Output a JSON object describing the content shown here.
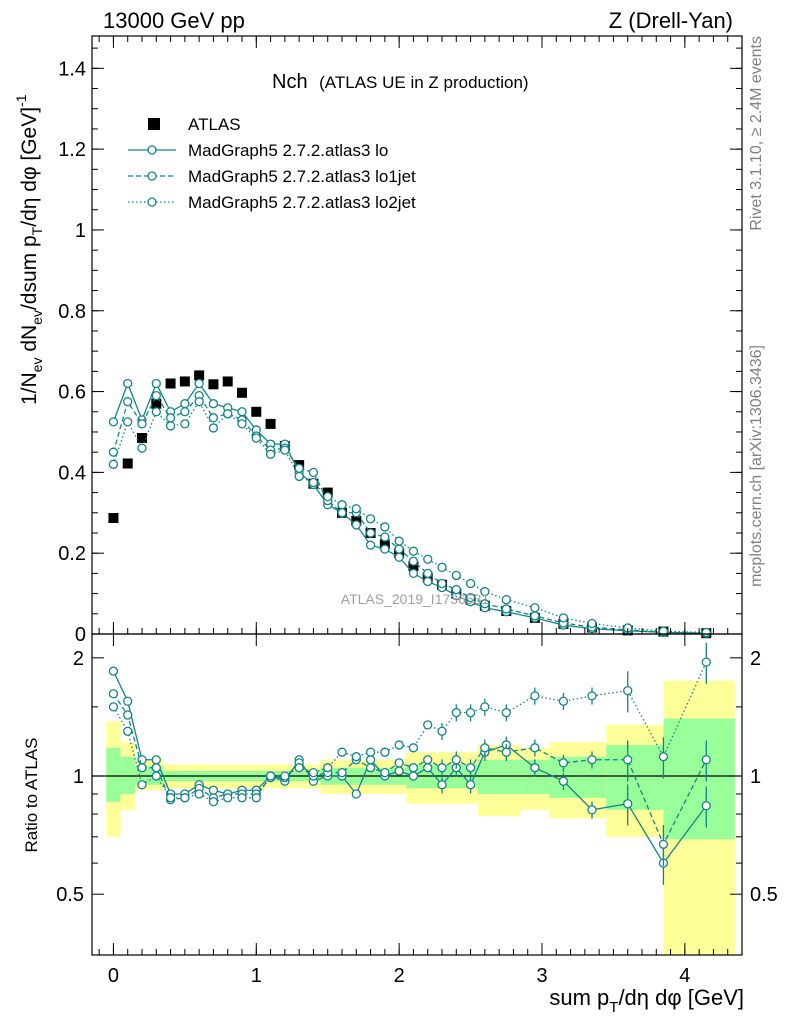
{
  "header": {
    "left": "13000 GeV pp",
    "right": "Z (Drell-Yan)"
  },
  "plot_title": {
    "main": "Nch",
    "sub": "(ATLAS UE in Z production)"
  },
  "side_labels": {
    "rivet": "Rivet 3.1.10, ≥ 2.4M events",
    "mcplots": "mcplots.cern.ch [arXiv:1306.3436]"
  },
  "watermark": "ATLAS_2019_I1736531",
  "legend": [
    {
      "label": "ATLAS",
      "style": "data"
    },
    {
      "label": "MadGraph5 2.7.2.atlas3 lo",
      "style": "solid"
    },
    {
      "label": "MadGraph5 2.7.2.atlas3 lo1jet",
      "style": "dashed"
    },
    {
      "label": "MadGraph5 2.7.2.atlas3 lo2jet",
      "style": "dotted"
    }
  ],
  "colors": {
    "mc": "#138388",
    "data": "#000000",
    "band_inner": "#99ff99",
    "band_outer": "#ffff99"
  },
  "chart_data": [
    {
      "type": "scatter",
      "panel": "main",
      "ylabel": "1/N_ev dN_ev/dsum p_T/dη dφ [GeV]^-1",
      "xlim": [
        -0.15,
        4.4
      ],
      "ylim": [
        0,
        1.48
      ],
      "yticks": [
        "0",
        "0.2",
        "0.4",
        "0.6",
        "0.8",
        "1",
        "1.2",
        "1.4"
      ],
      "x": [
        0.0,
        0.1,
        0.2,
        0.3,
        0.4,
        0.5,
        0.6,
        0.7,
        0.8,
        0.9,
        1.0,
        1.1,
        1.2,
        1.3,
        1.4,
        1.5,
        1.6,
        1.7,
        1.8,
        1.9,
        2.0,
        2.1,
        2.2,
        2.3,
        2.4,
        2.5,
        2.6,
        2.75,
        2.95,
        3.15,
        3.35,
        3.6,
        3.85,
        4.15
      ],
      "series": [
        {
          "name": "ATLAS",
          "values": [
            0.287,
            0.422,
            0.485,
            0.57,
            0.62,
            0.625,
            0.64,
            0.618,
            0.625,
            0.597,
            0.55,
            0.52,
            0.465,
            0.418,
            0.372,
            0.35,
            0.3,
            0.28,
            0.25,
            0.222,
            0.2,
            0.168,
            0.14,
            0.122,
            0.1,
            0.085,
            0.07,
            0.057,
            0.04,
            0.025,
            0.016,
            0.009,
            0.006,
            0.002
          ]
        },
        {
          "name": "MadGraph5 2.7.2.atlas3 lo",
          "values": [
            0.525,
            0.62,
            0.53,
            0.62,
            0.55,
            0.57,
            0.62,
            0.57,
            0.56,
            0.55,
            0.505,
            0.47,
            0.47,
            0.4,
            0.37,
            0.32,
            0.3,
            0.27,
            0.22,
            0.21,
            0.19,
            0.15,
            0.13,
            0.115,
            0.095,
            0.08,
            0.065,
            0.055,
            0.04,
            0.022,
            0.013,
            0.008,
            0.004,
            0.002
          ]
        },
        {
          "name": "MadGraph5 2.7.2.atlas3 lo1jet",
          "values": [
            0.45,
            0.575,
            0.52,
            0.59,
            0.535,
            0.55,
            0.59,
            0.535,
            0.545,
            0.53,
            0.49,
            0.455,
            0.46,
            0.41,
            0.4,
            0.33,
            0.3,
            0.3,
            0.25,
            0.24,
            0.21,
            0.18,
            0.15,
            0.125,
            0.11,
            0.09,
            0.075,
            0.062,
            0.045,
            0.027,
            0.017,
            0.01,
            0.004,
            0.002
          ]
        },
        {
          "name": "MadGraph5 2.7.2.atlas3 lo2jet",
          "values": [
            0.42,
            0.525,
            0.46,
            0.55,
            0.515,
            0.52,
            0.575,
            0.51,
            0.545,
            0.52,
            0.485,
            0.445,
            0.455,
            0.39,
            0.375,
            0.34,
            0.32,
            0.31,
            0.285,
            0.265,
            0.23,
            0.205,
            0.185,
            0.165,
            0.145,
            0.125,
            0.105,
            0.085,
            0.065,
            0.04,
            0.026,
            0.015,
            0.007,
            0.004
          ]
        }
      ]
    },
    {
      "type": "scatter",
      "panel": "ratio",
      "xlabel": "sum p_T/dη dφ [GeV]",
      "ylabel": "Ratio to ATLAS",
      "xlim": [
        -0.15,
        4.4
      ],
      "ylim": [
        0.35,
        2.3
      ],
      "yticks": [
        "0.5",
        "1",
        "2"
      ],
      "xticks": [
        "0",
        "1",
        "2",
        "3",
        "4"
      ],
      "x": [
        0.0,
        0.1,
        0.2,
        0.3,
        0.4,
        0.5,
        0.6,
        0.7,
        0.8,
        0.9,
        1.0,
        1.1,
        1.2,
        1.3,
        1.4,
        1.5,
        1.6,
        1.7,
        1.8,
        1.9,
        2.0,
        2.1,
        2.2,
        2.3,
        2.4,
        2.5,
        2.6,
        2.75,
        2.95,
        3.15,
        3.35,
        3.6,
        3.85,
        4.15
      ],
      "series": [
        {
          "name": "MadGraph5 2.7.2.atlas3 lo",
          "values": [
            1.85,
            1.55,
            1.1,
            1.1,
            0.9,
            0.9,
            0.95,
            0.92,
            0.9,
            0.92,
            0.92,
            1.0,
            0.97,
            1.1,
            0.97,
            1.0,
            1.0,
            0.9,
            1.1,
            1.0,
            1.03,
            1.0,
            1.05,
            0.95,
            1.05,
            0.95,
            1.15,
            1.2,
            1.05,
            0.97,
            0.82,
            0.85,
            0.6,
            0.84
          ]
        },
        {
          "name": "MadGraph5 2.7.2.atlas3 lo1jet",
          "values": [
            1.62,
            1.43,
            1.05,
            1.05,
            0.87,
            0.88,
            0.93,
            0.88,
            0.9,
            0.9,
            0.9,
            0.99,
            0.99,
            1.08,
            1.0,
            1.02,
            1.02,
            1.1,
            1.05,
            1.02,
            1.08,
            1.05,
            1.1,
            1.05,
            1.1,
            1.05,
            1.18,
            1.15,
            1.18,
            1.08,
            1.1,
            1.1,
            0.67,
            1.1
          ]
        },
        {
          "name": "MadGraph5 2.7.2.atlas3 lo2jet",
          "values": [
            1.5,
            1.3,
            0.95,
            1.0,
            0.88,
            0.88,
            0.9,
            0.86,
            0.88,
            0.88,
            0.88,
            1.0,
            1.0,
            1.05,
            1.02,
            1.05,
            1.15,
            1.12,
            1.15,
            1.15,
            1.2,
            1.18,
            1.35,
            1.3,
            1.45,
            1.45,
            1.5,
            1.45,
            1.6,
            1.55,
            1.6,
            1.65,
            1.12,
            1.95
          ]
        }
      ],
      "band_bins": [
        {
          "lo": -0.05,
          "hi": 0.05,
          "inner": [
            0.86,
            1.18
          ],
          "outer": [
            0.7,
            1.38
          ]
        },
        {
          "lo": 0.05,
          "hi": 0.15,
          "inner": [
            0.9,
            1.12
          ],
          "outer": [
            0.82,
            1.22
          ]
        },
        {
          "lo": 0.15,
          "hi": 0.35,
          "inner": [
            0.95,
            1.06
          ],
          "outer": [
            0.92,
            1.1
          ]
        },
        {
          "lo": 0.35,
          "hi": 1.45,
          "inner": [
            0.97,
            1.03
          ],
          "outer": [
            0.93,
            1.07
          ]
        },
        {
          "lo": 1.45,
          "hi": 2.05,
          "inner": [
            0.95,
            1.05
          ],
          "outer": [
            0.9,
            1.1
          ]
        },
        {
          "lo": 2.05,
          "hi": 2.55,
          "inner": [
            0.93,
            1.07
          ],
          "outer": [
            0.85,
            1.15
          ]
        },
        {
          "lo": 2.55,
          "hi": 2.85,
          "inner": [
            0.9,
            1.1
          ],
          "outer": [
            0.79,
            1.2
          ]
        },
        {
          "lo": 2.85,
          "hi": 3.05,
          "inner": [
            0.9,
            1.1
          ],
          "outer": [
            0.82,
            1.18
          ]
        },
        {
          "lo": 3.05,
          "hi": 3.45,
          "inner": [
            0.88,
            1.12
          ],
          "outer": [
            0.78,
            1.22
          ]
        },
        {
          "lo": 3.45,
          "hi": 3.85,
          "inner": [
            0.82,
            1.2
          ],
          "outer": [
            0.7,
            1.35
          ]
        },
        {
          "lo": 3.85,
          "hi": 4.35,
          "inner": [
            0.69,
            1.4
          ],
          "outer": [
            0.35,
            1.75
          ]
        }
      ]
    }
  ]
}
